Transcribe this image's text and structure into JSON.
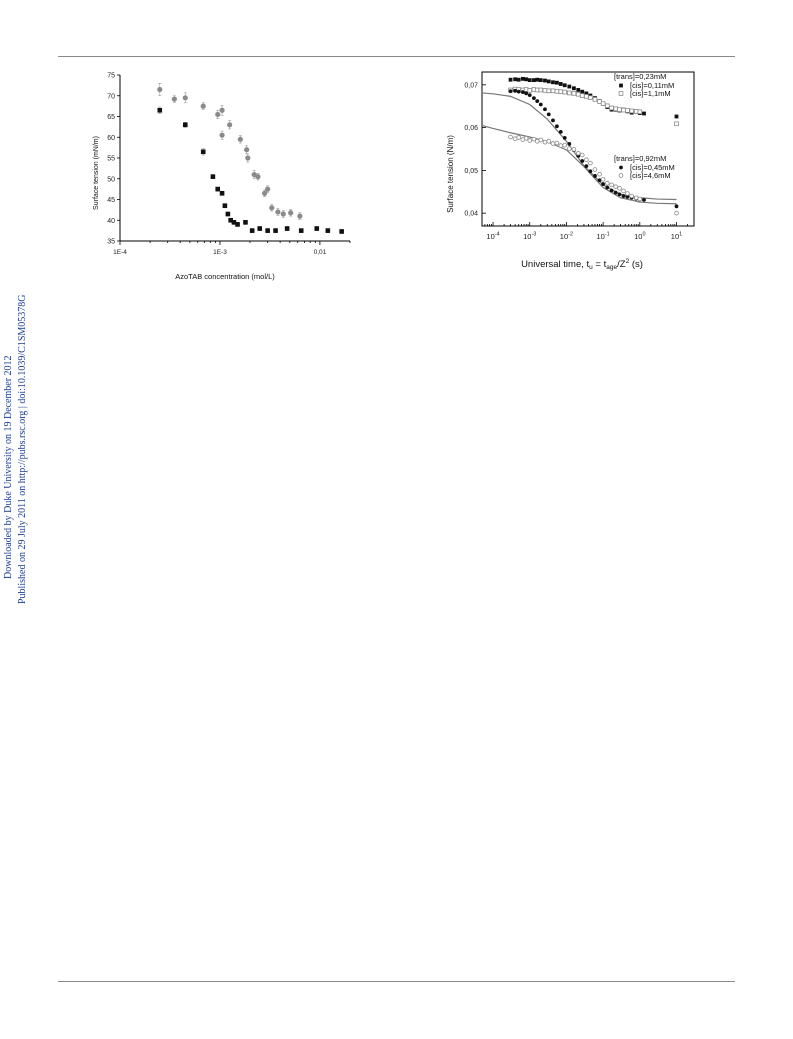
{
  "side_note": {
    "line1": "Downloaded by Duke University on 19 December 2012",
    "line2": "Published on 29 July 2011 on http://pubs.rsc.org | doi:10.1039/C1SM05378G"
  },
  "colors": {
    "side_note": "#1f3d8f",
    "black_series": "#111111",
    "grey_series": "#8a8a8a",
    "fit_lines": "#777777"
  },
  "chart_data": [
    {
      "type": "scatter",
      "title": "",
      "xlabel": "AzoTAB concentration (mol/L)",
      "ylabel": "Surface tension (mN/m)",
      "xscale": "log",
      "xlim": [
        0.0001,
        0.02
      ],
      "ylim": [
        35,
        75
      ],
      "xticks": [
        {
          "v": 0.0001,
          "label": "1E-4"
        },
        {
          "v": 0.001,
          "label": "1E-3"
        },
        {
          "v": 0.01,
          "label": "0,01"
        }
      ],
      "yticks": [
        35,
        40,
        45,
        50,
        55,
        60,
        65,
        70,
        75
      ],
      "grid": false,
      "legend": "none",
      "series": [
        {
          "marker": "square-filled",
          "color": "#111111",
          "points": [
            [
              0.00025,
              66.5
            ],
            [
              0.00045,
              63
            ],
            [
              0.00068,
              56.5
            ],
            [
              0.00085,
              50.5
            ],
            [
              0.00095,
              47.5
            ],
            [
              0.00105,
              46.5
            ],
            [
              0.00112,
              43.5
            ],
            [
              0.0012,
              41.5
            ],
            [
              0.00128,
              40
            ],
            [
              0.00138,
              39.5
            ],
            [
              0.0015,
              39
            ],
            [
              0.0018,
              39.5
            ],
            [
              0.0021,
              37.5
            ],
            [
              0.0025,
              38
            ],
            [
              0.003,
              37.5
            ],
            [
              0.0036,
              37.5
            ],
            [
              0.0047,
              38
            ],
            [
              0.0065,
              37.5
            ],
            [
              0.0093,
              38
            ],
            [
              0.012,
              37.5
            ],
            [
              0.0165,
              37.3
            ]
          ],
          "errors": [
            0.8,
            0.6,
            0.8,
            0.5,
            0.5,
            0.5,
            0.5,
            0.5,
            0.5,
            0.5,
            0.5,
            0.5,
            0.5,
            0.5,
            0.5,
            0.5,
            0.5,
            0.5,
            0.5,
            0.5,
            0.5
          ]
        },
        {
          "marker": "circle-filled",
          "color": "#8a8a8a",
          "points": [
            [
              0.00025,
              71.5
            ],
            [
              0.00035,
              69.2
            ],
            [
              0.00045,
              69.5
            ],
            [
              0.00068,
              67.5
            ],
            [
              0.00095,
              65.5
            ],
            [
              0.00105,
              60.5
            ],
            [
              0.00105,
              66.5
            ],
            [
              0.00125,
              63
            ],
            [
              0.0016,
              59.5
            ],
            [
              0.00185,
              57
            ],
            [
              0.0019,
              55
            ],
            [
              0.0022,
              51
            ],
            [
              0.0024,
              50.5
            ],
            [
              0.0028,
              46.5
            ],
            [
              0.003,
              47.5
            ],
            [
              0.0033,
              43
            ],
            [
              0.0038,
              42
            ],
            [
              0.0043,
              41.5
            ],
            [
              0.0051,
              41.8
            ],
            [
              0.0063,
              41
            ]
          ],
          "errors": [
            1.5,
            0.8,
            1.2,
            0.8,
            1.0,
            1.0,
            1.2,
            1.0,
            0.9,
            1.0,
            1.0,
            1.0,
            0.8,
            0.8,
            0.8,
            0.8,
            0.8,
            0.8,
            0.8,
            0.8
          ]
        }
      ]
    },
    {
      "type": "scatter",
      "title": "",
      "xlabel": "Universal time, t",
      "xlabel_sub1": "u",
      "xlabel_mid": " = t",
      "xlabel_sub2": "age",
      "xlabel_mid2": "/Z",
      "xlabel_sup": "2",
      "xlabel_end": " (s)",
      "ylabel": "Surface tension (N/m)",
      "xscale": "log",
      "xlim": [
        5e-05,
        30
      ],
      "ylim": [
        0.037,
        0.073
      ],
      "xticks": [
        {
          "v": 0.0001,
          "base": "10",
          "exp": "-4"
        },
        {
          "v": 0.001,
          "base": "10",
          "exp": "-3"
        },
        {
          "v": 0.01,
          "base": "10",
          "exp": "-2"
        },
        {
          "v": 0.1,
          "base": "10",
          "exp": "-1"
        },
        {
          "v": 1,
          "base": "10",
          "exp": "0"
        },
        {
          "v": 10,
          "base": "10",
          "exp": "1"
        }
      ],
      "yticks": [
        {
          "v": 0.04,
          "label": "0,04"
        },
        {
          "v": 0.05,
          "label": "0,05"
        },
        {
          "v": 0.06,
          "label": "0,06"
        },
        {
          "v": 0.07,
          "label": "0,07"
        }
      ],
      "grid": false,
      "legend": "top-right",
      "legend_groups": [
        {
          "heading": "[trans]=0,23mM",
          "entries": [
            {
              "label": "[cis]=0,11mM",
              "marker": "square-filled"
            },
            {
              "label": "[cis]=1,1mM",
              "marker": "square-open"
            }
          ]
        },
        {
          "heading": "[trans]=0,92mM",
          "entries": [
            {
              "label": "[cis]=0,45mM",
              "marker": "circle-filled"
            },
            {
              "label": "[cis]=4,6mM",
              "marker": "circle-open"
            }
          ]
        }
      ],
      "series": [
        {
          "name": "[cis]=0,11mM",
          "marker": "square-filled",
          "color": "#111111",
          "points": [
            [
              0.0003,
              0.0712
            ],
            [
              0.0004,
              0.0713
            ],
            [
              0.0005,
              0.0712
            ],
            [
              0.00065,
              0.0714
            ],
            [
              0.0008,
              0.0713
            ],
            [
              0.001,
              0.0711
            ],
            [
              0.0013,
              0.0711
            ],
            [
              0.0016,
              0.0712
            ],
            [
              0.002,
              0.0711
            ],
            [
              0.0026,
              0.071
            ],
            [
              0.0033,
              0.0708
            ],
            [
              0.0043,
              0.0706
            ],
            [
              0.0055,
              0.0705
            ],
            [
              0.007,
              0.0702
            ],
            [
              0.009,
              0.0699
            ],
            [
              0.012,
              0.0696
            ],
            [
              0.016,
              0.0692
            ],
            [
              0.021,
              0.0688
            ],
            [
              0.027,
              0.0684
            ],
            [
              0.035,
              0.068
            ],
            [
              0.045,
              0.0675
            ],
            [
              0.06,
              0.0669
            ],
            [
              0.08,
              0.0662
            ],
            [
              0.1,
              0.0655
            ],
            [
              0.13,
              0.0648
            ],
            [
              0.17,
              0.0642
            ],
            [
              0.22,
              0.0642
            ],
            [
              0.28,
              0.064
            ],
            [
              0.36,
              0.0642
            ],
            [
              0.46,
              0.0638
            ],
            [
              0.6,
              0.0635
            ],
            [
              0.8,
              0.0637
            ],
            [
              1.0,
              0.0634
            ],
            [
              1.3,
              0.0633
            ],
            [
              10,
              0.0626
            ]
          ]
        },
        {
          "name": "[cis]=1,1mM",
          "marker": "square-open",
          "color": "#8a8a8a",
          "points": [
            [
              0.0003,
              0.0688
            ],
            [
              0.0004,
              0.069
            ],
            [
              0.0005,
              0.0689
            ],
            [
              0.00065,
              0.0688
            ],
            [
              0.0008,
              0.0689
            ],
            [
              0.001,
              0.0687
            ],
            [
              0.0013,
              0.0689
            ],
            [
              0.0016,
              0.0688
            ],
            [
              0.002,
              0.0688
            ],
            [
              0.0026,
              0.0687
            ],
            [
              0.0033,
              0.0686
            ],
            [
              0.0043,
              0.0686
            ],
            [
              0.0055,
              0.0685
            ],
            [
              0.007,
              0.0684
            ],
            [
              0.009,
              0.0683
            ],
            [
              0.012,
              0.0681
            ],
            [
              0.016,
              0.068
            ],
            [
              0.021,
              0.0678
            ],
            [
              0.027,
              0.0675
            ],
            [
              0.035,
              0.0673
            ],
            [
              0.045,
              0.067
            ],
            [
              0.06,
              0.0666
            ],
            [
              0.08,
              0.0661
            ],
            [
              0.1,
              0.0656
            ],
            [
              0.13,
              0.0651
            ],
            [
              0.17,
              0.0646
            ],
            [
              0.22,
              0.0644
            ],
            [
              0.28,
              0.0642
            ],
            [
              0.36,
              0.0641
            ],
            [
              0.46,
              0.064
            ],
            [
              0.6,
              0.0639
            ],
            [
              0.8,
              0.0638
            ],
            [
              1.0,
              0.0637
            ],
            [
              10,
              0.0609
            ]
          ]
        },
        {
          "name": "[cis]=0,45mM",
          "marker": "circle-filled",
          "color": "#111111",
          "points": [
            [
              0.0003,
              0.0685
            ],
            [
              0.0004,
              0.0686
            ],
            [
              0.0005,
              0.0684
            ],
            [
              0.00065,
              0.0683
            ],
            [
              0.0008,
              0.068
            ],
            [
              0.001,
              0.0676
            ],
            [
              0.0013,
              0.0669
            ],
            [
              0.0016,
              0.0662
            ],
            [
              0.002,
              0.0654
            ],
            [
              0.0026,
              0.0643
            ],
            [
              0.0033,
              0.0631
            ],
            [
              0.0043,
              0.0617
            ],
            [
              0.0055,
              0.0603
            ],
            [
              0.007,
              0.059
            ],
            [
              0.009,
              0.0576
            ],
            [
              0.012,
              0.0562
            ],
            [
              0.016,
              0.0547
            ],
            [
              0.021,
              0.0534
            ],
            [
              0.027,
              0.0522
            ],
            [
              0.035,
              0.051
            ],
            [
              0.045,
              0.0498
            ],
            [
              0.06,
              0.0487
            ],
            [
              0.08,
              0.0477
            ],
            [
              0.1,
              0.0468
            ],
            [
              0.13,
              0.046
            ],
            [
              0.17,
              0.0453
            ],
            [
              0.22,
              0.0448
            ],
            [
              0.28,
              0.0444
            ],
            [
              0.36,
              0.044
            ],
            [
              0.46,
              0.0438
            ],
            [
              0.6,
              0.0436
            ],
            [
              0.8,
              0.0434
            ],
            [
              1.0,
              0.0432
            ],
            [
              1.3,
              0.0431
            ],
            [
              10,
              0.0416
            ]
          ]
        },
        {
          "name": "[cis]=4,6mM",
          "marker": "circle-open",
          "color": "#8a8a8a",
          "points": [
            [
              0.0003,
              0.0578
            ],
            [
              0.0004,
              0.0574
            ],
            [
              0.0005,
              0.0577
            ],
            [
              0.00065,
              0.0572
            ],
            [
              0.0008,
              0.0575
            ],
            [
              0.001,
              0.057
            ],
            [
              0.0013,
              0.0573
            ],
            [
              0.0016,
              0.0568
            ],
            [
              0.002,
              0.0571
            ],
            [
              0.0026,
              0.0566
            ],
            [
              0.0033,
              0.0568
            ],
            [
              0.0043,
              0.0563
            ],
            [
              0.0055,
              0.0564
            ],
            [
              0.007,
              0.0558
            ],
            [
              0.009,
              0.0559
            ],
            [
              0.012,
              0.0551
            ],
            [
              0.016,
              0.0549
            ],
            [
              0.021,
              0.054
            ],
            [
              0.027,
              0.0536
            ],
            [
              0.035,
              0.0525
            ],
            [
              0.045,
              0.0517
            ],
            [
              0.06,
              0.0502
            ],
            [
              0.08,
              0.0491
            ],
            [
              0.1,
              0.0479
            ],
            [
              0.13,
              0.047
            ],
            [
              0.17,
              0.0466
            ],
            [
              0.22,
              0.0462
            ],
            [
              0.28,
              0.0458
            ],
            [
              0.36,
              0.0452
            ],
            [
              0.46,
              0.0446
            ],
            [
              0.6,
              0.044
            ],
            [
              0.8,
              0.0436
            ],
            [
              1.0,
              0.0433
            ],
            [
              10,
              0.04
            ]
          ]
        }
      ],
      "fit_curves": [
        {
          "color": "#777777",
          "points": [
            [
              5e-05,
              0.0681
            ],
            [
              0.0001,
              0.0679
            ],
            [
              0.0003,
              0.0673
            ],
            [
              0.001,
              0.0654
            ],
            [
              0.003,
              0.062
            ],
            [
              0.01,
              0.0568
            ],
            [
              0.03,
              0.0511
            ],
            [
              0.1,
              0.0466
            ],
            [
              0.3,
              0.0444
            ],
            [
              1,
              0.0436
            ],
            [
              3,
              0.0433
            ],
            [
              10,
              0.0432
            ]
          ]
        },
        {
          "color": "#777777",
          "points": [
            [
              5e-05,
              0.0605
            ],
            [
              0.0001,
              0.0598
            ],
            [
              0.0003,
              0.0588
            ],
            [
              0.001,
              0.0578
            ],
            [
              0.003,
              0.0567
            ],
            [
              0.01,
              0.0548
            ],
            [
              0.03,
              0.0509
            ],
            [
              0.1,
              0.046
            ],
            [
              0.3,
              0.0436
            ],
            [
              1,
              0.0426
            ],
            [
              3,
              0.0423
            ],
            [
              10,
              0.0422
            ]
          ]
        }
      ]
    }
  ]
}
